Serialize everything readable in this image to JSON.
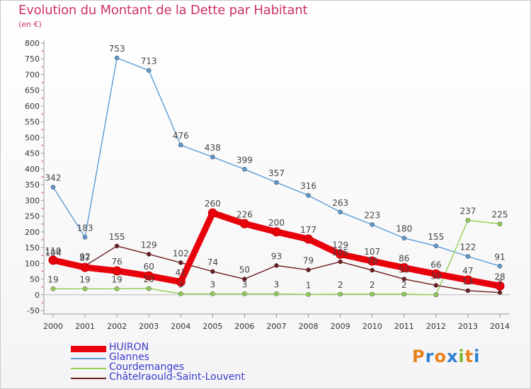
{
  "title": "Evolution du Montant de la Dette par Habitant",
  "subtitle": "(en €)",
  "logo": {
    "text": "Proxiti",
    "colors": [
      "#e8821e",
      "#2b7fd0",
      "#e8821e",
      "#2b7fd0",
      "#7cba2f",
      "#e8821e",
      "#2b7fd0"
    ]
  },
  "chart_data": {
    "type": "line",
    "x": [
      "2000",
      "2001",
      "2002",
      "2003",
      "2004",
      "2005",
      "2006",
      "2007",
      "2008",
      "2009",
      "2010",
      "2011",
      "2012",
      "2013",
      "2014"
    ],
    "ylim": [
      -50,
      800
    ],
    "yticks": [
      -50,
      0,
      50,
      100,
      150,
      200,
      250,
      300,
      350,
      400,
      450,
      500,
      550,
      600,
      650,
      700,
      750,
      800
    ],
    "grid": false,
    "legend": "bottom-left",
    "series": [
      {
        "name": "HUIRON",
        "color": "#e8000b",
        "values": [
          110,
          87,
          76,
          60,
          41,
          260,
          226,
          200,
          177,
          129,
          107,
          86,
          66,
          47,
          28
        ],
        "labels": [
          "110",
          "87",
          "76",
          "60",
          "41",
          "260",
          "226",
          "200",
          "177",
          "129",
          "107",
          "86",
          "66",
          "47",
          "28"
        ],
        "label_pos": "above"
      },
      {
        "name": "Glannes",
        "color": "#5b9bd5",
        "values": [
          342,
          183,
          753,
          713,
          476,
          438,
          399,
          357,
          316,
          263,
          223,
          180,
          155,
          122,
          91
        ],
        "labels": [
          "342",
          "183",
          "753",
          "713",
          "476",
          "438",
          "399",
          "357",
          "316",
          "263",
          "223",
          "180",
          "155",
          "122",
          "91"
        ],
        "label_pos": "above"
      },
      {
        "name": "Courdemanges",
        "color": "#92d050",
        "values": [
          19,
          19,
          19,
          20,
          3,
          3,
          3,
          3,
          1,
          2,
          2,
          2,
          0,
          237,
          225
        ],
        "labels": [
          "19",
          "19",
          "19",
          "20",
          "3",
          "3",
          "3",
          "3",
          "1",
          "2",
          "2",
          "2",
          "",
          "237",
          "225"
        ],
        "label_pos": "above"
      },
      {
        "name": "Châtelraould-Saint-Louvent",
        "color": "#6e1a1a",
        "values": [
          104,
          92,
          155,
          129,
          102,
          74,
          50,
          93,
          79,
          105,
          78,
          50,
          30,
          13,
          7
        ],
        "labels": [
          "104",
          "92",
          "155",
          "129",
          "102",
          "74",
          "50",
          "93",
          "79",
          "105",
          "78",
          "50",
          "30",
          "13",
          "7"
        ],
        "label_pos": "above"
      }
    ]
  }
}
